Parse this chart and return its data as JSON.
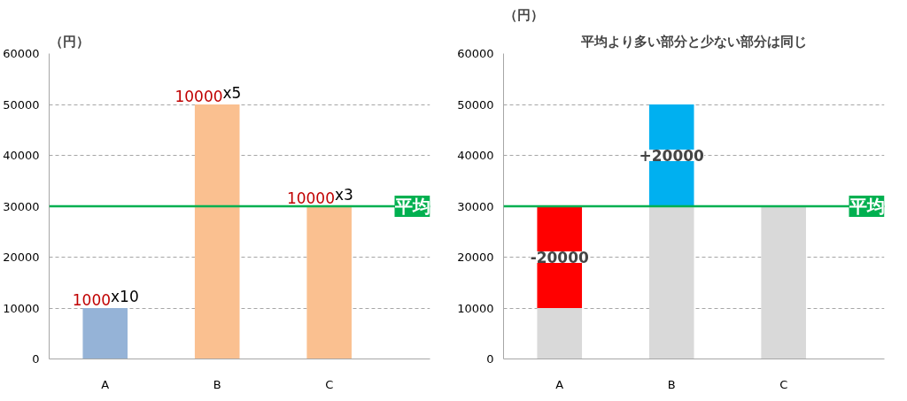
{
  "chart_data": [
    {
      "type": "bar",
      "ylabel": "（円）",
      "categories": [
        "A",
        "B",
        "C"
      ],
      "series": [
        {
          "colors": [
            "#95b3d7",
            "#fac090",
            "#fac090"
          ],
          "values": [
            10000,
            50000,
            30000
          ]
        }
      ],
      "annotations": [
        {
          "text": "1000x10",
          "x": "A",
          "y": 10000
        },
        {
          "text": "10000x5",
          "x": "B",
          "y": 50000
        },
        {
          "text": "10000x3",
          "x": "C",
          "y": 30000
        }
      ],
      "ylim": [
        0,
        60000
      ],
      "yticks": [
        0,
        10000,
        20000,
        30000,
        40000,
        50000,
        60000
      ],
      "grid": "y",
      "ref_lines": [
        {
          "axis": "y",
          "value": 30000,
          "label": "平均",
          "color": "#00b050"
        }
      ]
    },
    {
      "type": "bar",
      "stacked": true,
      "ylabel": "（円）",
      "title": "平均より多い部分と少ない部分は同じ",
      "categories": [
        "A",
        "B",
        "C"
      ],
      "series": [
        {
          "color": "#d9d9d9",
          "values": [
            10000,
            30000,
            30000
          ]
        },
        {
          "colors": [
            "#ff0000",
            "#00b0f0",
            null
          ],
          "values": [
            20000,
            20000,
            null
          ]
        }
      ],
      "annotations": [
        {
          "text": "-20000",
          "x": "A",
          "y": 30000
        },
        {
          "text": "+20000",
          "x": "B",
          "y": 50000
        }
      ],
      "ylim": [
        0,
        60000
      ],
      "yticks": [
        0,
        10000,
        20000,
        30000,
        40000,
        50000,
        60000
      ],
      "grid": "y",
      "ref_lines": [
        {
          "axis": "y",
          "value": 30000,
          "label": "平均",
          "color": "#00b050"
        }
      ]
    }
  ]
}
